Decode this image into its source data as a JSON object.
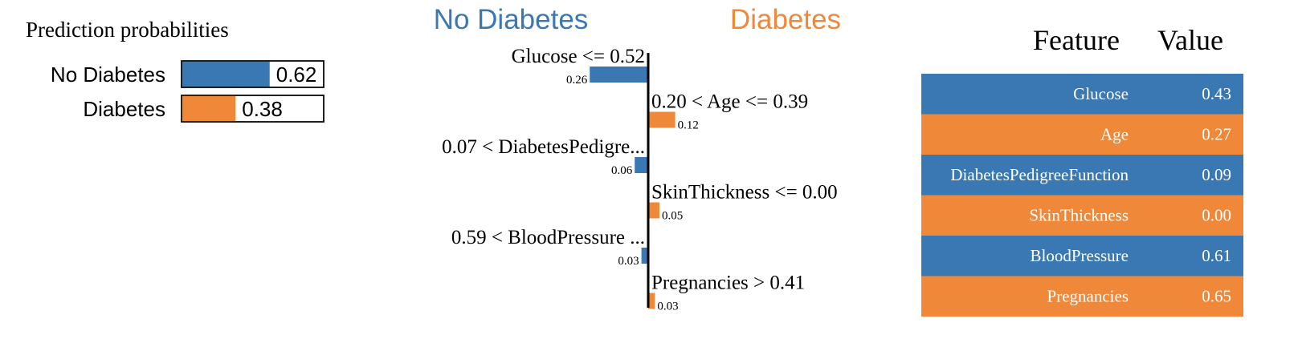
{
  "chart_data": [
    {
      "type": "bar",
      "title": "Prediction probabilities",
      "categories": [
        "No Diabetes",
        "Diabetes"
      ],
      "values": [
        0.62,
        0.38
      ],
      "labels": [
        "0.62",
        "0.38"
      ],
      "xlim": [
        0,
        1
      ],
      "colors": [
        "#3a78b3",
        "#f0883a"
      ]
    },
    {
      "type": "bar",
      "orientation": "diverging",
      "class_left": "No Diabetes",
      "class_right": "Diabetes",
      "categories": [
        "Glucose <= 0.52",
        "0.20 < Age <= 0.39",
        "0.07 < DiabetesPedigre...",
        "SkinThickness <= 0.00",
        "0.59 < BloodPressure ...",
        "Pregnancies > 0.41"
      ],
      "values": [
        -0.26,
        0.12,
        -0.06,
        0.05,
        -0.03,
        0.03
      ],
      "value_labels": [
        "0.26",
        "0.12",
        "0.06",
        "0.05",
        "0.03",
        "0.03"
      ],
      "colors": {
        "left": "#3a78b3",
        "right": "#f0883a"
      }
    },
    {
      "type": "table",
      "columns": [
        "Feature",
        "Value"
      ],
      "rows": [
        {
          "feature": "Glucose",
          "value": "0.43",
          "side": "left"
        },
        {
          "feature": "Age",
          "value": "0.27",
          "side": "right"
        },
        {
          "feature": "DiabetesPedigreeFunction",
          "value": "0.09",
          "side": "left"
        },
        {
          "feature": "SkinThickness",
          "value": "0.00",
          "side": "right"
        },
        {
          "feature": "BloodPressure",
          "value": "0.61",
          "side": "left"
        },
        {
          "feature": "Pregnancies",
          "value": "0.65",
          "side": "right"
        }
      ]
    }
  ]
}
